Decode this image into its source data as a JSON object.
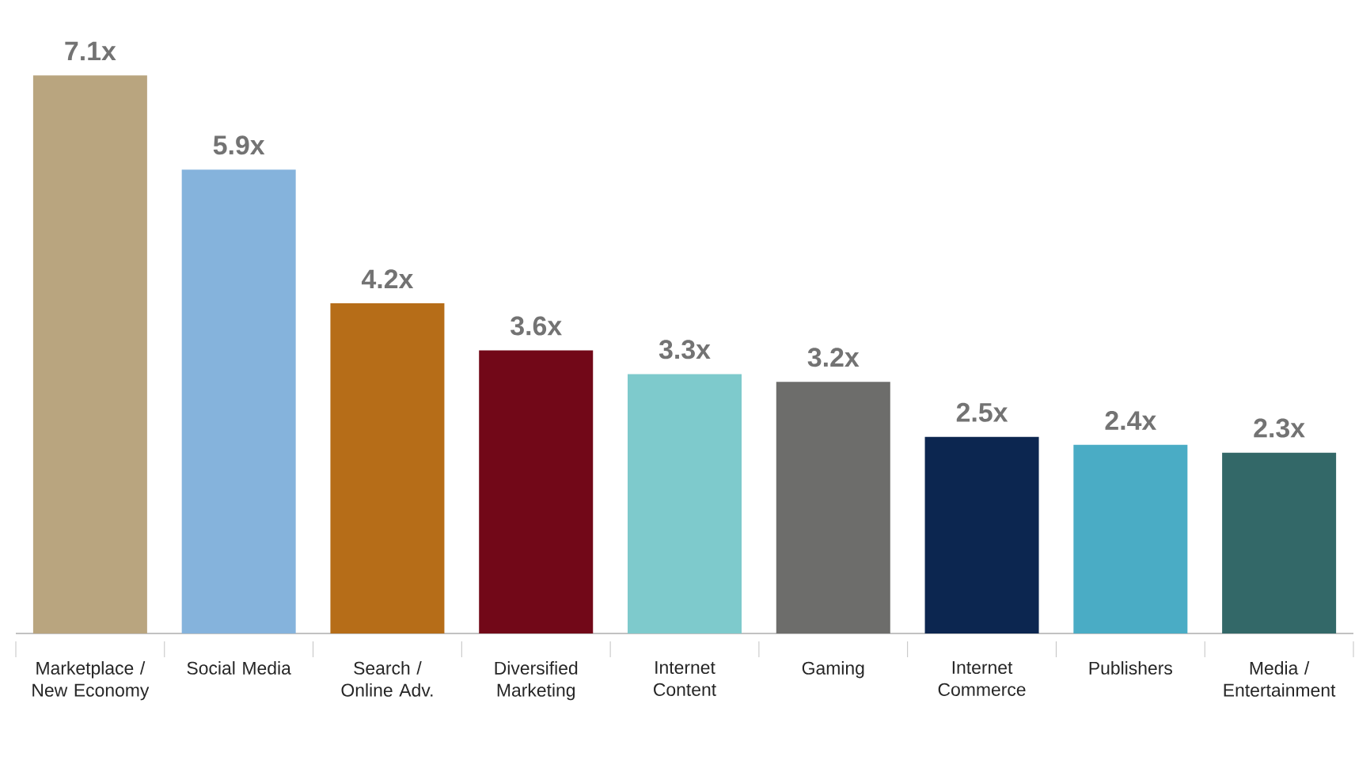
{
  "chart_data": {
    "type": "bar",
    "categories": [
      "Marketplace / New Economy",
      "Social Media",
      "Search / Online Adv.",
      "Diversified Marketing",
      "Internet Content",
      "Gaming",
      "Internet Commerce",
      "Publishers",
      "Media / Entertainment"
    ],
    "values": [
      7.1,
      5.9,
      4.2,
      3.6,
      3.3,
      3.2,
      2.5,
      2.4,
      2.3
    ],
    "value_labels": [
      "7.1x",
      "5.9x",
      "4.2x",
      "3.6x",
      "3.3x",
      "3.2x",
      "2.5x",
      "2.4x",
      "2.3x"
    ],
    "colors": [
      "#b9a57f",
      "#85b3dc",
      "#b66d18",
      "#720818",
      "#7ecacc",
      "#6d6d6b",
      "#0c2650",
      "#4aacc5",
      "#336868"
    ]
  }
}
